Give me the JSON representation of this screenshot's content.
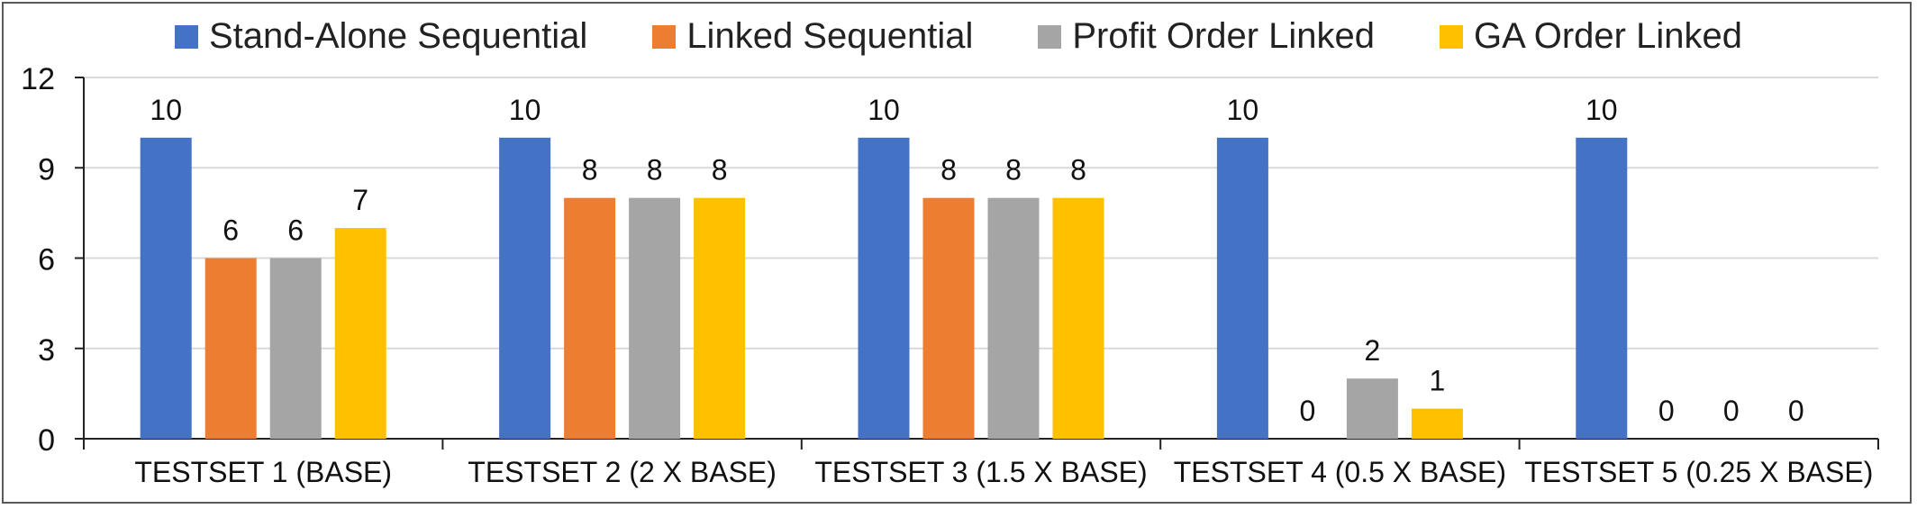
{
  "chart_data": {
    "type": "bar",
    "title": "",
    "xlabel": "",
    "ylabel": "",
    "ylim": [
      0,
      12
    ],
    "yticks": [
      0,
      3,
      6,
      9,
      12
    ],
    "grid": true,
    "legend_position": "top",
    "categories": [
      "TESTSET 1 (BASE)",
      "TESTSET 2 (2 X BASE)",
      "TESTSET 3 (1.5 X BASE)",
      "TESTSET 4 (0.5 X BASE)",
      "TESTSET 5 (0.25 X BASE)"
    ],
    "series": [
      {
        "name": "Stand-Alone Sequential",
        "color": "#4472c4",
        "values": [
          10,
          10,
          10,
          10,
          10
        ]
      },
      {
        "name": "Linked Sequential",
        "color": "#ed7d31",
        "values": [
          6,
          8,
          8,
          0,
          0
        ]
      },
      {
        "name": "Profit Order Linked",
        "color": "#a5a5a5",
        "values": [
          6,
          8,
          8,
          2,
          0
        ]
      },
      {
        "name": "GA Order Linked",
        "color": "#ffc000",
        "values": [
          7,
          8,
          8,
          1,
          0
        ]
      }
    ],
    "data_labels": true
  }
}
